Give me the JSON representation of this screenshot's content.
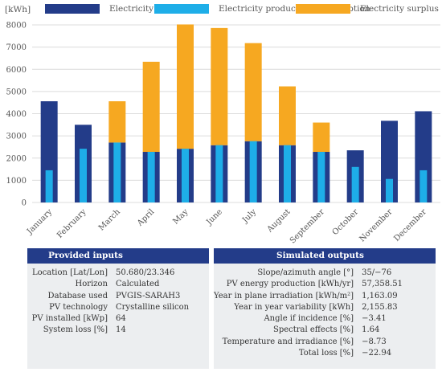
{
  "legend": [
    {
      "label": "Electricity needs",
      "color": "#233c89"
    },
    {
      "label": "Electricity production/consumption",
      "color": "#1eaee8"
    },
    {
      "label": "Electricity surplus",
      "color": "#f6a821"
    }
  ],
  "chart_data": {
    "type": "bar",
    "unit_label": "[kWh]",
    "categories": [
      "January",
      "February",
      "March",
      "April",
      "May",
      "June",
      "July",
      "August",
      "September",
      "October",
      "November",
      "December"
    ],
    "ylim": [
      0,
      8000
    ],
    "yticks": [
      0,
      1000,
      2000,
      3000,
      4000,
      5000,
      6000,
      7000,
      8000
    ],
    "grid": true,
    "series": [
      {
        "name": "Electricity needs",
        "color": "#233c89",
        "values": [
          4560,
          3500,
          2700,
          2280,
          2420,
          2580,
          2760,
          2580,
          2280,
          2350,
          3680,
          4110
        ]
      },
      {
        "name": "Electricity production/consumption",
        "color": "#1eaee8",
        "values": [
          1450,
          2420,
          2700,
          2280,
          2420,
          2580,
          2760,
          2580,
          2280,
          1600,
          1060,
          1450
        ]
      },
      {
        "name": "Electricity surplus",
        "color": "#f6a821",
        "values": [
          0,
          0,
          1860,
          4060,
          5600,
          5280,
          4420,
          2650,
          1320,
          0,
          0,
          0
        ]
      }
    ]
  },
  "inputs": {
    "title": "Provided inputs",
    "rows": [
      {
        "k": "Location [Lat/Lon]",
        "v": "50.680/23.346"
      },
      {
        "k": "Horizon",
        "v": "Calculated"
      },
      {
        "k": "Database used",
        "v": "PVGIS-SARAH3"
      },
      {
        "k": "PV technology",
        "v": "Crystalline silicon"
      },
      {
        "k": "PV installed [kWp]",
        "v": "64"
      },
      {
        "k": "System loss [%]",
        "v": "14"
      }
    ]
  },
  "outputs": {
    "title": "Simulated outputs",
    "rows": [
      {
        "k": "Slope/azimuth angle [°]",
        "v": "35/−76"
      },
      {
        "k": "PV energy production [kWh/yr]",
        "v": "57,358.51"
      },
      {
        "k": "Year in plane irradiation [kWh/m²]",
        "v": "1,163.09"
      },
      {
        "k": "Year in year variability [kWh]",
        "v": "2,155.83"
      },
      {
        "k": "Angle if incidence [%]",
        "v": "−3.41"
      },
      {
        "k": "Spectral effects [%]",
        "v": "1.64"
      },
      {
        "k": "Temperature and irradiance [%]",
        "v": "−8.73"
      },
      {
        "k": "Total loss [%]",
        "v": "−22.94"
      }
    ]
  }
}
